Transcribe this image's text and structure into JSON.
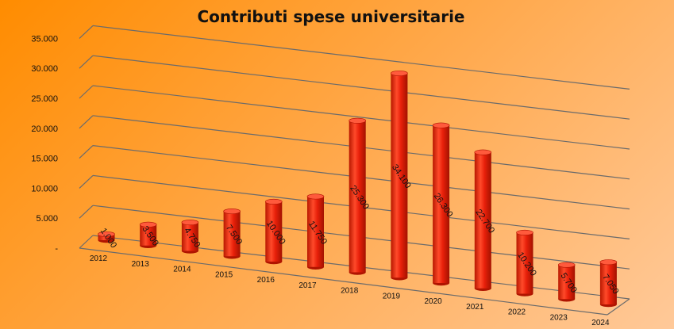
{
  "chart_data": {
    "type": "bar",
    "title": "Contributi spese universitarie",
    "categories": [
      "2012",
      "2013",
      "2014",
      "2015",
      "2016",
      "2017",
      "2018",
      "2019",
      "2020",
      "2021",
      "2022",
      "2023",
      "2024"
    ],
    "values": [
      1000,
      3500,
      4750,
      7500,
      10000,
      11750,
      25300,
      34100,
      26300,
      22700,
      10200,
      5700,
      7050
    ],
    "value_labels": [
      "1.000",
      "3.500",
      "4.750",
      "7.500",
      "10.000",
      "11.750",
      "25.300",
      "34.100",
      "26.300",
      "22.700",
      "10.200",
      "5.700",
      "7.050"
    ],
    "y_ticks": [
      0,
      5000,
      10000,
      15000,
      20000,
      25000,
      30000,
      35000
    ],
    "y_tick_labels": [
      "-",
      "5.000",
      "10.000",
      "15.000",
      "20.000",
      "25.000",
      "30.000",
      "35.000"
    ],
    "ylim": [
      0,
      35000
    ],
    "xlabel": "",
    "ylabel": "",
    "grid": true,
    "legend": "none",
    "bar_shape": "3d-cylinder",
    "colors": {
      "bar": "#e8200a",
      "bar_dark": "#b01400",
      "bar_light": "#ff5a3c",
      "grid": "#6b6b6b"
    }
  }
}
